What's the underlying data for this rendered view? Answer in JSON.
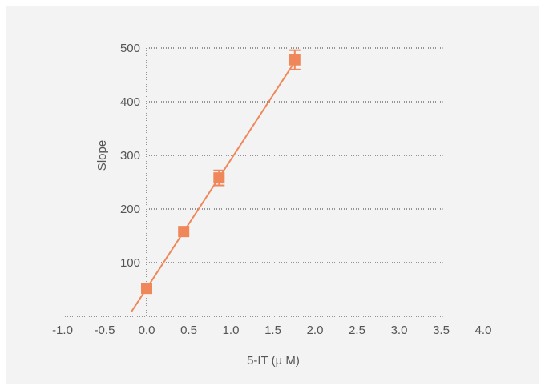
{
  "chart_data": {
    "type": "scatter",
    "title": "",
    "xlabel": "5-IT (µ M)",
    "ylabel": "Slope",
    "xlim": [
      -1.0,
      4.0
    ],
    "ylim": [
      0,
      500
    ],
    "x_ticks": [
      "-1.0",
      "-0.5",
      "0.0",
      "0.5",
      "1.0",
      "1.5",
      "2.0",
      "2.5",
      "3.0",
      "3.5",
      "4.0"
    ],
    "y_ticks": [
      "100",
      "200",
      "300",
      "400",
      "500"
    ],
    "grid": "horizontal dotted",
    "series": [
      {
        "points": [
          {
            "x": 0.0,
            "y": 52,
            "err": 0
          },
          {
            "x": 0.44,
            "y": 158,
            "err": 0
          },
          {
            "x": 0.86,
            "y": 258,
            "err": 14
          },
          {
            "x": 1.76,
            "y": 478,
            "err": 18
          }
        ]
      }
    ],
    "fit_line": {
      "slope": 240,
      "intercept": 52
    },
    "colors": {
      "series": "#f0875a",
      "grid": "#333333",
      "axis": "#555555",
      "panel": "#f3f3f3"
    }
  }
}
